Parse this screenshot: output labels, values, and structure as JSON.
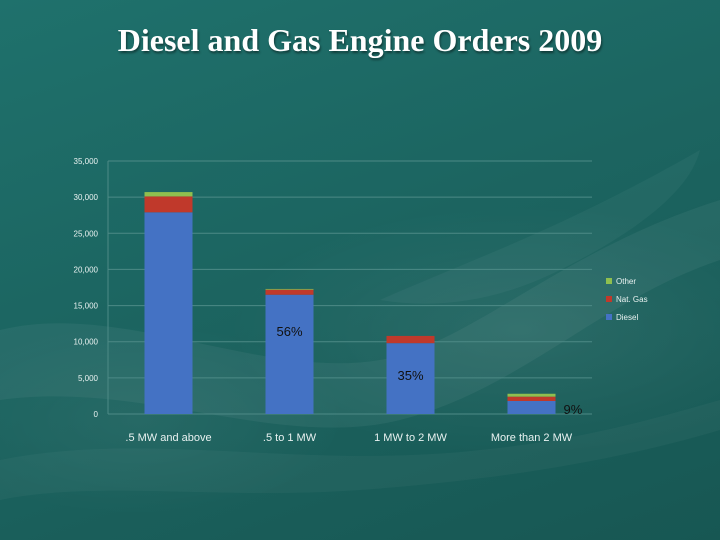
{
  "title": "Diesel and Gas Engine Orders 2009",
  "colors": {
    "diesel": "#4472c4",
    "natgas": "#c0392b",
    "other": "#8fbf4f",
    "axis_text": "#e9f2f1",
    "grid": "#4d8a86"
  },
  "chart_data": {
    "type": "bar",
    "stacked": true,
    "categories": [
      ".5 MW and above",
      ".5 to 1 MW",
      "1 MW to 2 MW",
      "More than 2 MW"
    ],
    "series": [
      {
        "name": "Diesel",
        "values": [
          27900,
          16500,
          9800,
          1800
        ]
      },
      {
        "name": "Nat. Gas",
        "values": [
          2200,
          700,
          1000,
          600
        ]
      },
      {
        "name": "Other",
        "values": [
          600,
          100,
          0,
          400
        ]
      }
    ],
    "ylim": [
      0,
      35000
    ],
    "yticks": [
      "0",
      "5,000",
      "10,000",
      "15,000",
      "20,000",
      "25,000",
      "30,000",
      "35,000"
    ],
    "ytick_values": [
      0,
      5000,
      10000,
      15000,
      20000,
      25000,
      30000,
      35000
    ],
    "grid": true,
    "legend_position": "right",
    "data_labels": [
      {
        "category_index": 1,
        "text": "56%"
      },
      {
        "category_index": 2,
        "text": "35%"
      },
      {
        "category_index": 3,
        "text": "9%"
      }
    ]
  }
}
